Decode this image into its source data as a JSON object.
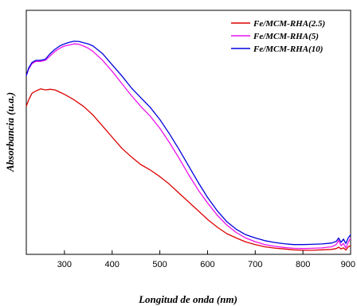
{
  "chart_data": {
    "type": "line",
    "title": "",
    "xlabel": "Longitud de onda (nm)",
    "ylabel": "Absorbancia (u.a.)",
    "xlim": [
      220,
      900
    ],
    "ylim": [
      0,
      1
    ],
    "y_ticks_labeled": false,
    "x_ticks": [
      300,
      400,
      500,
      600,
      700,
      800,
      900
    ],
    "x_tick_labels": [
      "300",
      "400",
      "500",
      "600",
      "700",
      "800",
      "900"
    ],
    "grid": false,
    "legend_position": "top-right",
    "series": [
      {
        "name": "Fe/MCM-RHA(2.5)",
        "color": "#dd0000",
        "x": [
          220,
          225,
          232,
          240,
          250,
          260,
          270,
          280,
          290,
          300,
          320,
          340,
          360,
          380,
          400,
          420,
          440,
          460,
          480,
          500,
          520,
          540,
          560,
          580,
          600,
          620,
          640,
          660,
          680,
          700,
          720,
          740,
          760,
          780,
          800,
          820,
          840,
          860,
          870,
          875,
          880,
          885,
          890,
          895,
          900
        ],
        "y": [
          0.66,
          0.69,
          0.72,
          0.73,
          0.74,
          0.735,
          0.738,
          0.735,
          0.725,
          0.715,
          0.69,
          0.66,
          0.62,
          0.57,
          0.52,
          0.47,
          0.43,
          0.395,
          0.37,
          0.34,
          0.305,
          0.265,
          0.225,
          0.185,
          0.145,
          0.11,
          0.08,
          0.06,
          0.042,
          0.03,
          0.02,
          0.014,
          0.01,
          0.006,
          0.004,
          0.004,
          0.006,
          0.008,
          0.012,
          0.018,
          0.01,
          0.015,
          0.005,
          0.02,
          0.025
        ]
      },
      {
        "name": "Fe/MCM-RHA(5)",
        "color": "#ee11ee",
        "x": [
          220,
          225,
          232,
          240,
          250,
          260,
          270,
          280,
          290,
          300,
          310,
          320,
          330,
          340,
          350,
          360,
          380,
          400,
          420,
          440,
          460,
          480,
          500,
          520,
          540,
          560,
          580,
          600,
          620,
          640,
          660,
          680,
          700,
          720,
          740,
          760,
          780,
          800,
          820,
          840,
          860,
          870,
          875,
          880,
          885,
          890,
          895,
          900
        ],
        "y": [
          0.8,
          0.83,
          0.855,
          0.865,
          0.865,
          0.87,
          0.89,
          0.91,
          0.925,
          0.935,
          0.94,
          0.945,
          0.943,
          0.935,
          0.925,
          0.91,
          0.87,
          0.82,
          0.765,
          0.71,
          0.66,
          0.615,
          0.56,
          0.495,
          0.425,
          0.35,
          0.28,
          0.22,
          0.165,
          0.12,
          0.085,
          0.06,
          0.043,
          0.03,
          0.022,
          0.017,
          0.013,
          0.012,
          0.013,
          0.015,
          0.02,
          0.03,
          0.05,
          0.025,
          0.035,
          0.015,
          0.04,
          0.06
        ]
      },
      {
        "name": "Fe/MCM-RHA(10)",
        "color": "#0000dd",
        "x": [
          220,
          225,
          232,
          240,
          250,
          260,
          270,
          280,
          290,
          300,
          310,
          320,
          330,
          340,
          350,
          360,
          380,
          400,
          420,
          440,
          460,
          480,
          500,
          520,
          540,
          560,
          580,
          600,
          620,
          640,
          660,
          680,
          700,
          720,
          740,
          760,
          780,
          800,
          820,
          840,
          860,
          870,
          875,
          880,
          885,
          890,
          895,
          900
        ],
        "y": [
          0.8,
          0.835,
          0.86,
          0.87,
          0.87,
          0.875,
          0.9,
          0.92,
          0.935,
          0.945,
          0.952,
          0.957,
          0.956,
          0.95,
          0.945,
          0.935,
          0.9,
          0.85,
          0.8,
          0.745,
          0.7,
          0.655,
          0.6,
          0.535,
          0.465,
          0.39,
          0.315,
          0.245,
          0.185,
          0.135,
          0.1,
          0.075,
          0.06,
          0.048,
          0.04,
          0.034,
          0.03,
          0.03,
          0.031,
          0.033,
          0.037,
          0.045,
          0.06,
          0.04,
          0.055,
          0.035,
          0.06,
          0.075
        ]
      }
    ]
  }
}
